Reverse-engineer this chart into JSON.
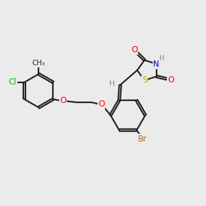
{
  "bg_color": "#ebebeb",
  "bond_color": "#222222",
  "bond_lw": 1.6,
  "dbo": 0.05,
  "atom_colors": {
    "O": "#ff0000",
    "N": "#0000cc",
    "S": "#bbaa00",
    "Cl": "#00bb00",
    "Br": "#cc6600",
    "H": "#669999",
    "C": "#222222"
  },
  "fs": 8.5
}
